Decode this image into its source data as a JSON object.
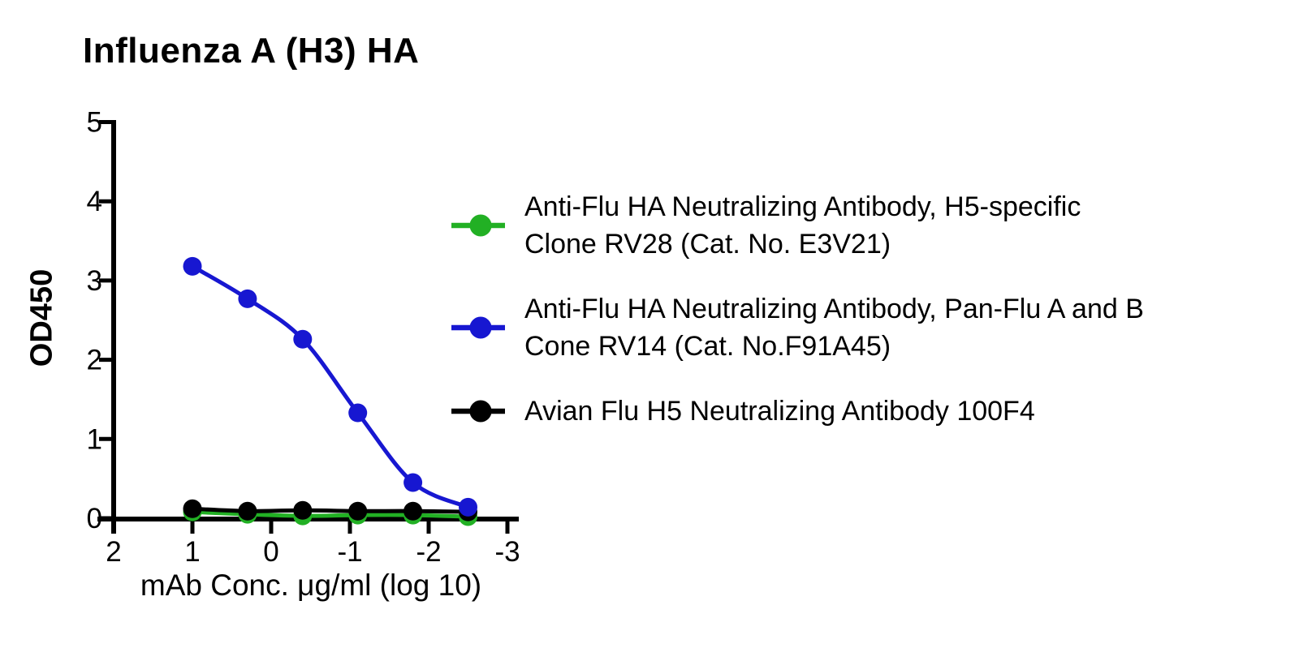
{
  "chart_data": {
    "type": "line",
    "title": "Influenza A (H3) HA",
    "xlabel": "mAb Conc. μg/ml (log 10)",
    "ylabel": "OD450",
    "xlim": [
      2,
      -3
    ],
    "x_axis_reversed": true,
    "ylim": [
      0,
      5
    ],
    "grid": false,
    "legend_position": "right",
    "x_tick_labels": [
      "2",
      "1",
      "0",
      "-1",
      "-2",
      "-3"
    ],
    "y_tick_labels": [
      "0",
      "1",
      "2",
      "3",
      "4",
      "5"
    ],
    "x": [
      1.0,
      0.3,
      -0.4,
      -1.1,
      -1.8,
      -2.5
    ],
    "draw_order": [
      0,
      2,
      1
    ],
    "series": [
      {
        "id": "rv28-green",
        "name": "Anti-Flu HA Neutralizing Antibody, H5-specific Clone RV28 (Cat. No. E3V21)",
        "color": "#22b024",
        "marker": "circle",
        "values": [
          0.08,
          0.05,
          0.03,
          0.04,
          0.04,
          0.02
        ]
      },
      {
        "id": "rv14-blue",
        "name": "Anti-Flu HA Neutralizing Antibody, Pan-Flu A and B Cone RV14 (Cat. No.F91A45)",
        "color": "#1717d1",
        "marker": "circle",
        "values": [
          3.18,
          2.77,
          2.26,
          1.33,
          0.45,
          0.14
        ]
      },
      {
        "id": "100f4-black",
        "name": "Avian Flu H5 Neutralizing Antibody 100F4",
        "color": "#000000",
        "marker": "circle",
        "values": [
          0.12,
          0.09,
          0.1,
          0.09,
          0.09,
          0.08
        ]
      }
    ]
  },
  "legend": {
    "entries": [
      {
        "line1": "Anti-Flu HA Neutralizing Antibody, H5-specific",
        "line2": "Clone RV28 (Cat. No. E3V21)",
        "color": "#22b024"
      },
      {
        "line1": "Anti-Flu HA Neutralizing Antibody, Pan-Flu A and B",
        "line2": "Cone RV14 (Cat. No.F91A45)",
        "color": "#1717d1"
      },
      {
        "line1": "Avian Flu H5 Neutralizing Antibody 100F4",
        "line2": "",
        "color": "#000000"
      }
    ]
  }
}
